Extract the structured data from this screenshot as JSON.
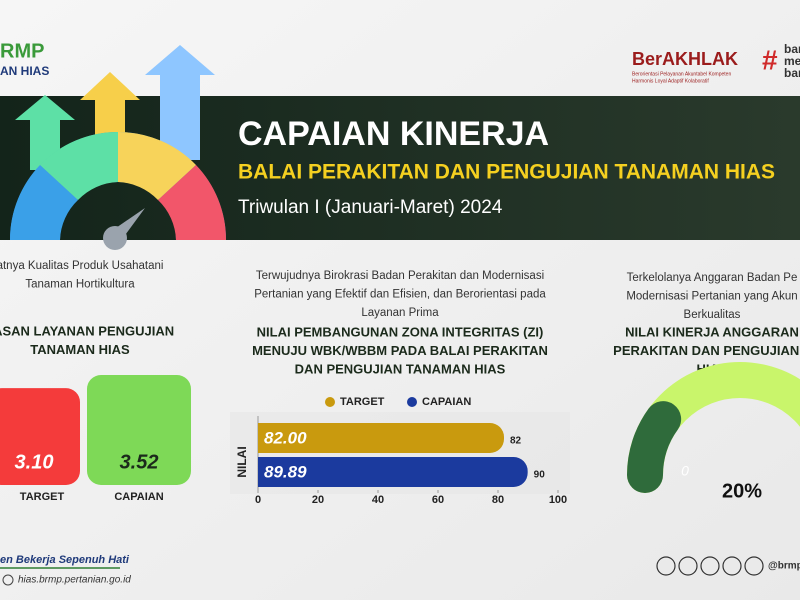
{
  "header": {
    "logo_text": "RMP",
    "logo_subtext": "AN HIAS",
    "berakhlak": "BerAKHLAK",
    "berakhlak_tagline": [
      "Berorientasi Pelayanan Akuntabel Kompeten",
      "Harmonis Loyal Adaptif Kolaboratif"
    ],
    "slogan": [
      "ban",
      "mel",
      "ban"
    ]
  },
  "banner": {
    "title": "CAPAIAN KINERJA",
    "subtitle": "BALAI PERAKITAN DAN PENGUJIAN TANAMAN HIAS",
    "period": "Triwulan I (Januari-Maret) 2024"
  },
  "chart_data": [
    {
      "type": "bar",
      "description": [
        "atnya Kualitas Produk Usahatani",
        "Tanaman Hortikultura"
      ],
      "title": [
        "JASAN LAYANAN PENGUJIAN",
        "TANAMAN HIAS"
      ],
      "categories": [
        "TARGET",
        "CAPAIAN"
      ],
      "values": [
        3.1,
        3.52
      ],
      "value_labels": [
        "3.10",
        "3.52"
      ],
      "colors": [
        "#f43b3b",
        "#7ed957"
      ]
    },
    {
      "type": "hbar",
      "description": [
        "Terwujudnya Birokrasi Badan Perakitan dan Modernisasi",
        "Pertanian yang  Efektif dan Efisien, dan Berorientasi pada",
        "Layanan Prima"
      ],
      "title": [
        "NILAI PEMBANGUNAN ZONA INTEGRITAS (ZI)",
        "MENUJU WBK/WBBM PADA BALAI PERAKITAN",
        "DAN PENGUJIAN TANAMAN HIAS"
      ],
      "ylabel": "NILAI",
      "series": [
        {
          "name": "TARGET",
          "color": "#c99a0e",
          "values": [
            82
          ],
          "value_labels": [
            "82.00"
          ],
          "end_labels": [
            "82"
          ]
        },
        {
          "name": "CAPAIAN",
          "color": "#1b3a9e",
          "values": [
            89.89
          ],
          "value_labels": [
            "89.89"
          ],
          "end_labels": [
            "90"
          ]
        }
      ],
      "xlim": [
        0,
        100
      ],
      "xticks": [
        0,
        20,
        40,
        60,
        80,
        100
      ],
      "legend": "top"
    },
    {
      "type": "gauge",
      "description": [
        "Terkelolanya Anggaran Badan Pe",
        "Modernisasi Pertanian yang Akun",
        "Berkualitas"
      ],
      "title": [
        "NILAI KINERJA ANGGARAN",
        "PERAKITAN DAN PENGUJIAN T",
        "HIAS"
      ],
      "values": [
        20
      ],
      "value_labels": [
        "20%"
      ],
      "start_label": "0",
      "colors": [
        "#2f6b3b",
        "#c9f56b"
      ]
    }
  ],
  "footer": {
    "motto": "en Bekerja Sepenuh Hati",
    "website": "hias.brmp.pertanian.go.id",
    "handle": "@brmp"
  }
}
